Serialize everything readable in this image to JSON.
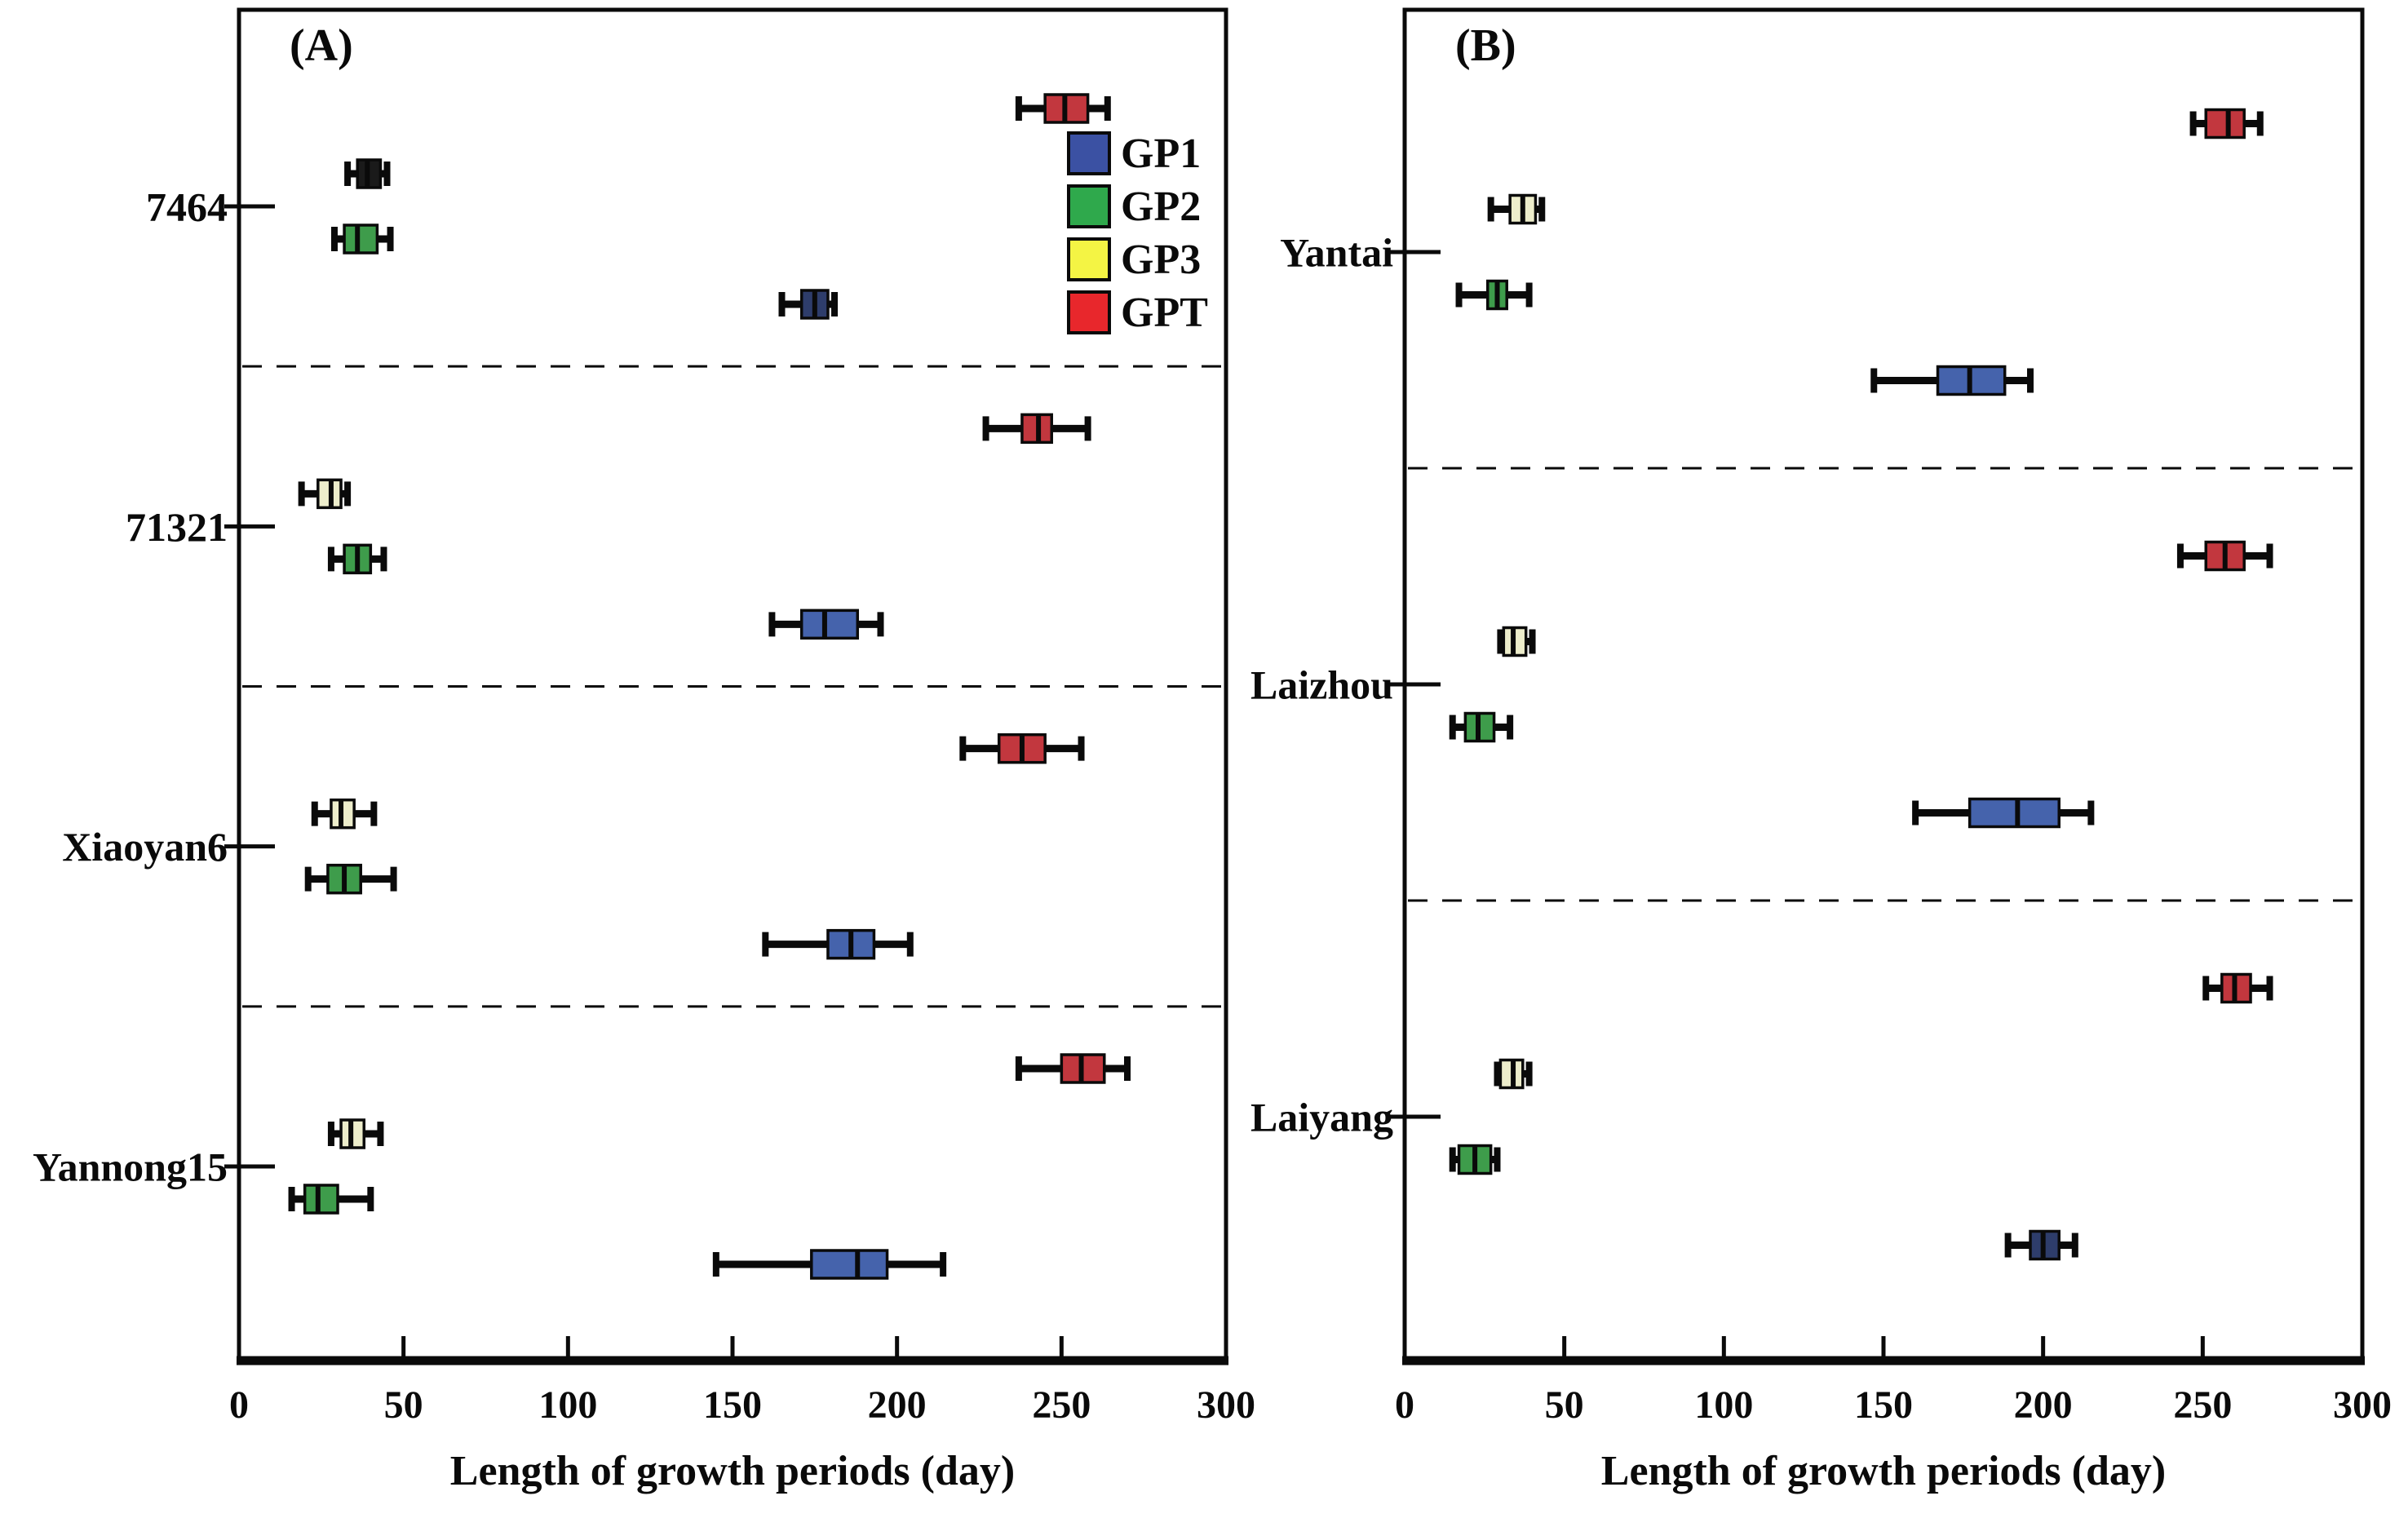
{
  "figure": {
    "background": "#ffffff",
    "axis_title": "Length of growth periods (day)"
  },
  "legend": {
    "position": "upper-right-inside-panel-A",
    "items": [
      {
        "label": "GP1",
        "color": "#3B51A3"
      },
      {
        "label": "GP2",
        "color": "#2FA94C"
      },
      {
        "label": "GP3",
        "color": "#F4F444"
      },
      {
        "label": "GPT",
        "color": "#E8272C"
      }
    ]
  },
  "series_styles": {
    "GP1": {
      "fill": "#4563AC"
    },
    "GP2": {
      "fill": "#3E9C4B"
    },
    "GP3": {
      "fill": "#EDEDCB"
    },
    "GPT": {
      "fill": "#C2373E"
    }
  },
  "chart_data": [
    {
      "type": "boxplot",
      "orientation": "horizontal",
      "panel_label": "(A)",
      "xlabel": "Length of growth periods (day)",
      "xlim": [
        0,
        300
      ],
      "xticks": [
        0,
        50,
        100,
        150,
        200,
        250,
        300
      ],
      "series_order_top_to_bottom": [
        "GPT",
        "GP3",
        "GP2",
        "GP1"
      ],
      "show_legend": true,
      "grid": false,
      "dashed_separators_between_groups": true,
      "categories": [
        "7464",
        "71321",
        "Xiaoyan6",
        "Yannong15"
      ],
      "groups": [
        {
          "category": "7464",
          "boxes": [
            {
              "series": "GPT",
              "whislo": 237,
              "q1": 245,
              "med": 251,
              "q3": 258,
              "whishi": 264
            },
            {
              "series": "GP3",
              "whislo": 33,
              "q1": 36,
              "med": 39,
              "q3": 43,
              "whishi": 45,
              "fill": "#1A1A1A"
            },
            {
              "series": "GP2",
              "whislo": 29,
              "q1": 32,
              "med": 36,
              "q3": 42,
              "whishi": 46
            },
            {
              "series": "GP1",
              "whislo": 165,
              "q1": 171,
              "med": 175,
              "q3": 179,
              "whishi": 181,
              "fill": "#2E3D6B"
            }
          ]
        },
        {
          "category": "71321",
          "boxes": [
            {
              "series": "GPT",
              "whislo": 227,
              "q1": 238,
              "med": 243,
              "q3": 247,
              "whishi": 258
            },
            {
              "series": "GP3",
              "whislo": 19,
              "q1": 24,
              "med": 28,
              "q3": 31,
              "whishi": 33
            },
            {
              "series": "GP2",
              "whislo": 28,
              "q1": 32,
              "med": 36,
              "q3": 40,
              "whishi": 44
            },
            {
              "series": "GP1",
              "whislo": 162,
              "q1": 171,
              "med": 178,
              "q3": 188,
              "whishi": 195
            }
          ]
        },
        {
          "category": "Xiaoyan6",
          "boxes": [
            {
              "series": "GPT",
              "whislo": 220,
              "q1": 231,
              "med": 238,
              "q3": 245,
              "whishi": 256
            },
            {
              "series": "GP3",
              "whislo": 23,
              "q1": 28,
              "med": 31,
              "q3": 35,
              "whishi": 41
            },
            {
              "series": "GP2",
              "whislo": 21,
              "q1": 27,
              "med": 32,
              "q3": 37,
              "whishi": 47
            },
            {
              "series": "GP1",
              "whislo": 160,
              "q1": 179,
              "med": 186,
              "q3": 193,
              "whishi": 204
            }
          ]
        },
        {
          "category": "Yannong15",
          "boxes": [
            {
              "series": "GPT",
              "whislo": 237,
              "q1": 250,
              "med": 256,
              "q3": 263,
              "whishi": 270
            },
            {
              "series": "GP3",
              "whislo": 28,
              "q1": 31,
              "med": 34,
              "q3": 38,
              "whishi": 43
            },
            {
              "series": "GP2",
              "whislo": 16,
              "q1": 20,
              "med": 24,
              "q3": 30,
              "whishi": 40
            },
            {
              "series": "GP1",
              "whislo": 145,
              "q1": 174,
              "med": 188,
              "q3": 197,
              "whishi": 214
            }
          ]
        }
      ]
    },
    {
      "type": "boxplot",
      "orientation": "horizontal",
      "panel_label": "(B)",
      "xlabel": "Length of growth periods (day)",
      "xlim": [
        0,
        300
      ],
      "xticks": [
        0,
        50,
        100,
        150,
        200,
        250,
        300
      ],
      "series_order_top_to_bottom": [
        "GPT",
        "GP3",
        "GP2",
        "GP1"
      ],
      "show_legend": false,
      "grid": false,
      "dashed_separators_between_groups": true,
      "categories": [
        "Yantai",
        "Laizhou",
        "Laiyang"
      ],
      "groups": [
        {
          "category": "Yantai",
          "boxes": [
            {
              "series": "GPT",
              "whislo": 247,
              "q1": 251,
              "med": 258,
              "q3": 263,
              "whishi": 268
            },
            {
              "series": "GP3",
              "whislo": 27,
              "q1": 33,
              "med": 37,
              "q3": 41,
              "whishi": 43
            },
            {
              "series": "GP2",
              "whislo": 17,
              "q1": 26,
              "med": 29,
              "q3": 32,
              "whishi": 39
            },
            {
              "series": "GP1",
              "whislo": 147,
              "q1": 167,
              "med": 177,
              "q3": 188,
              "whishi": 196
            }
          ]
        },
        {
          "category": "Laizhou",
          "boxes": [
            {
              "series": "GPT",
              "whislo": 243,
              "q1": 251,
              "med": 257,
              "q3": 263,
              "whishi": 271
            },
            {
              "series": "GP3",
              "whislo": 30,
              "q1": 31,
              "med": 34,
              "q3": 38,
              "whishi": 40
            },
            {
              "series": "GP2",
              "whislo": 15,
              "q1": 19,
              "med": 23,
              "q3": 28,
              "whishi": 33
            },
            {
              "series": "GP1",
              "whislo": 160,
              "q1": 177,
              "med": 192,
              "q3": 205,
              "whishi": 215
            }
          ]
        },
        {
          "category": "Laiyang",
          "boxes": [
            {
              "series": "GPT",
              "whislo": 251,
              "q1": 256,
              "med": 260,
              "q3": 265,
              "whishi": 271
            },
            {
              "series": "GP3",
              "whislo": 29,
              "q1": 30,
              "med": 34,
              "q3": 37,
              "whishi": 39
            },
            {
              "series": "GP2",
              "whislo": 15,
              "q1": 17,
              "med": 22,
              "q3": 27,
              "whishi": 29
            },
            {
              "series": "GP1",
              "whislo": 189,
              "q1": 196,
              "med": 200,
              "q3": 205,
              "whishi": 210,
              "fill": "#2E3D6B"
            }
          ]
        }
      ]
    }
  ]
}
